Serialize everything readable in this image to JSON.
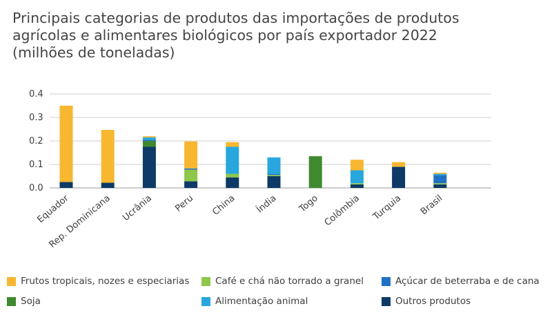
{
  "title_lines": [
    "Principais categorias de produtos das importações de produtos",
    "agrícolas e alimentares biológicos por país exportador 2022",
    "(milhões de toneladas)"
  ],
  "chart_data": {
    "type": "bar",
    "stacked": true,
    "title": "Principais categorias de produtos das importações de produtos agrícolas e alimentares biológicos por país exportador 2022 (milhões de toneladas)",
    "categories": [
      "Equador",
      "Rep. Dominicana",
      "Ucrânia",
      "Peru",
      "China",
      "Índia",
      "Togo",
      "Colômbia",
      "Turquia",
      "Brasil"
    ],
    "ylim": [
      0,
      0.4
    ],
    "yticks": [
      "0.0",
      "0.1",
      "0.2",
      "0.3",
      "0.4"
    ],
    "grid": true,
    "legend_position": "bottom",
    "series": [
      {
        "name": "Outros produtos",
        "color": "#0d3a66",
        "values": [
          0.025,
          0.022,
          0.175,
          0.028,
          0.045,
          0.05,
          0.0,
          0.015,
          0.09,
          0.015
        ]
      },
      {
        "name": "Soja",
        "color": "#3f8a2e",
        "values": [
          0.0,
          0.0,
          0.025,
          0.0,
          0.0,
          0.0,
          0.135,
          0.0,
          0.0,
          0.0
        ]
      },
      {
        "name": "Café e chá não torrado a granel",
        "color": "#8ec74a",
        "values": [
          0.0,
          0.0,
          0.0,
          0.05,
          0.015,
          0.005,
          0.0,
          0.005,
          0.0,
          0.005
        ]
      },
      {
        "name": "Açúcar de beterraba e de cana",
        "color": "#1f73c4",
        "values": [
          0.0,
          0.0,
          0.005,
          0.005,
          0.0,
          0.005,
          0.0,
          0.0,
          0.0,
          0.035
        ]
      },
      {
        "name": "Alimentação animal",
        "color": "#27a7de",
        "values": [
          0.0,
          0.0,
          0.01,
          0.0,
          0.115,
          0.07,
          0.0,
          0.055,
          0.0,
          0.005
        ]
      },
      {
        "name": "Frutos tropicais, nozes e especiarias",
        "color": "#f7b731",
        "values": [
          0.325,
          0.225,
          0.005,
          0.115,
          0.02,
          0.0,
          0.0,
          0.045,
          0.02,
          0.005
        ]
      }
    ]
  },
  "legend": [
    {
      "label": "Frutos tropicais, nozes e especiarias",
      "color": "#f7b731"
    },
    {
      "label": "Café e chá não torrado a granel",
      "color": "#8ec74a"
    },
    {
      "label": "Açúcar de beterraba e de cana",
      "color": "#1f73c4"
    },
    {
      "label": "Soja",
      "color": "#3f8a2e"
    },
    {
      "label": "Alimentação animal",
      "color": "#27a7de"
    },
    {
      "label": "Outros produtos",
      "color": "#0d3a66"
    }
  ]
}
